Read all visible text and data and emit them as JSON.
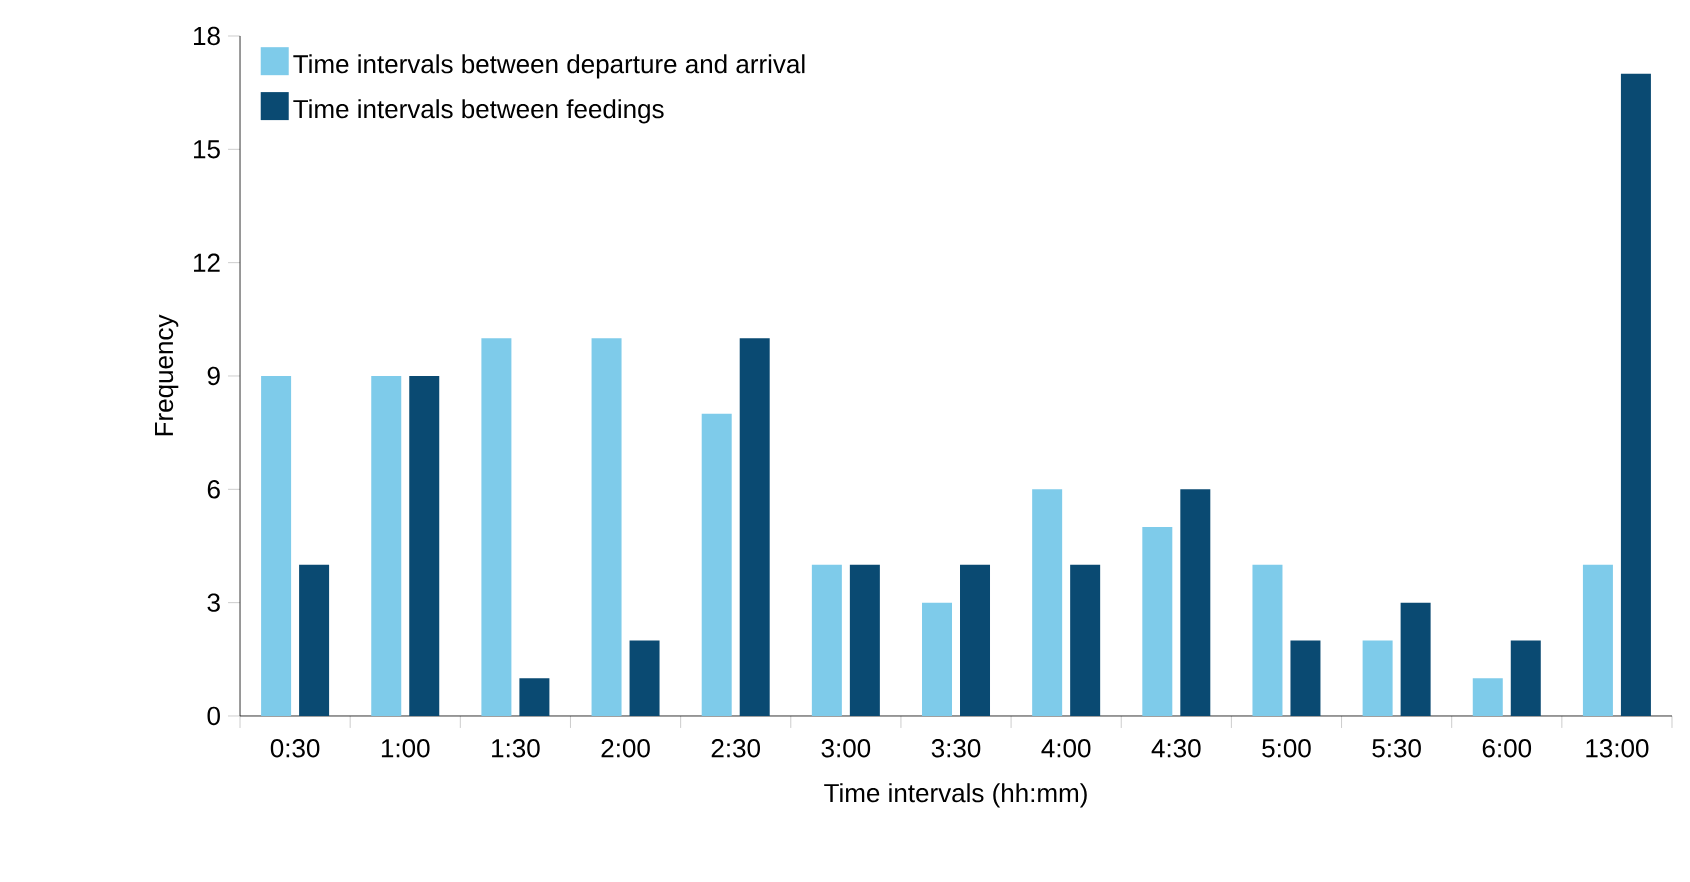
{
  "chart_data": {
    "type": "bar",
    "xlabel": "Time intervals (hh:mm)",
    "ylabel": "Frequency",
    "categories": [
      "0:30",
      "1:00",
      "1:30",
      "2:00",
      "2:30",
      "3:00",
      "3:30",
      "4:00",
      "4:30",
      "5:00",
      "5:30",
      "6:00",
      "13:00"
    ],
    "series": [
      {
        "name": "Time intervals between departure and arrival",
        "color": "#7ecbea",
        "values": [
          9,
          9,
          10,
          10,
          8,
          4,
          3,
          6,
          5,
          4,
          2,
          1,
          4
        ]
      },
      {
        "name": "Time intervals between feedings",
        "color": "#0a4a72",
        "values": [
          4,
          9,
          1,
          2,
          10,
          4,
          4,
          4,
          6,
          2,
          3,
          2,
          17
        ]
      }
    ],
    "ylim": [
      0,
      18
    ],
    "yticks": [
      0,
      3,
      6,
      9,
      12,
      15,
      18
    ],
    "grid": false,
    "legend": "top left"
  }
}
